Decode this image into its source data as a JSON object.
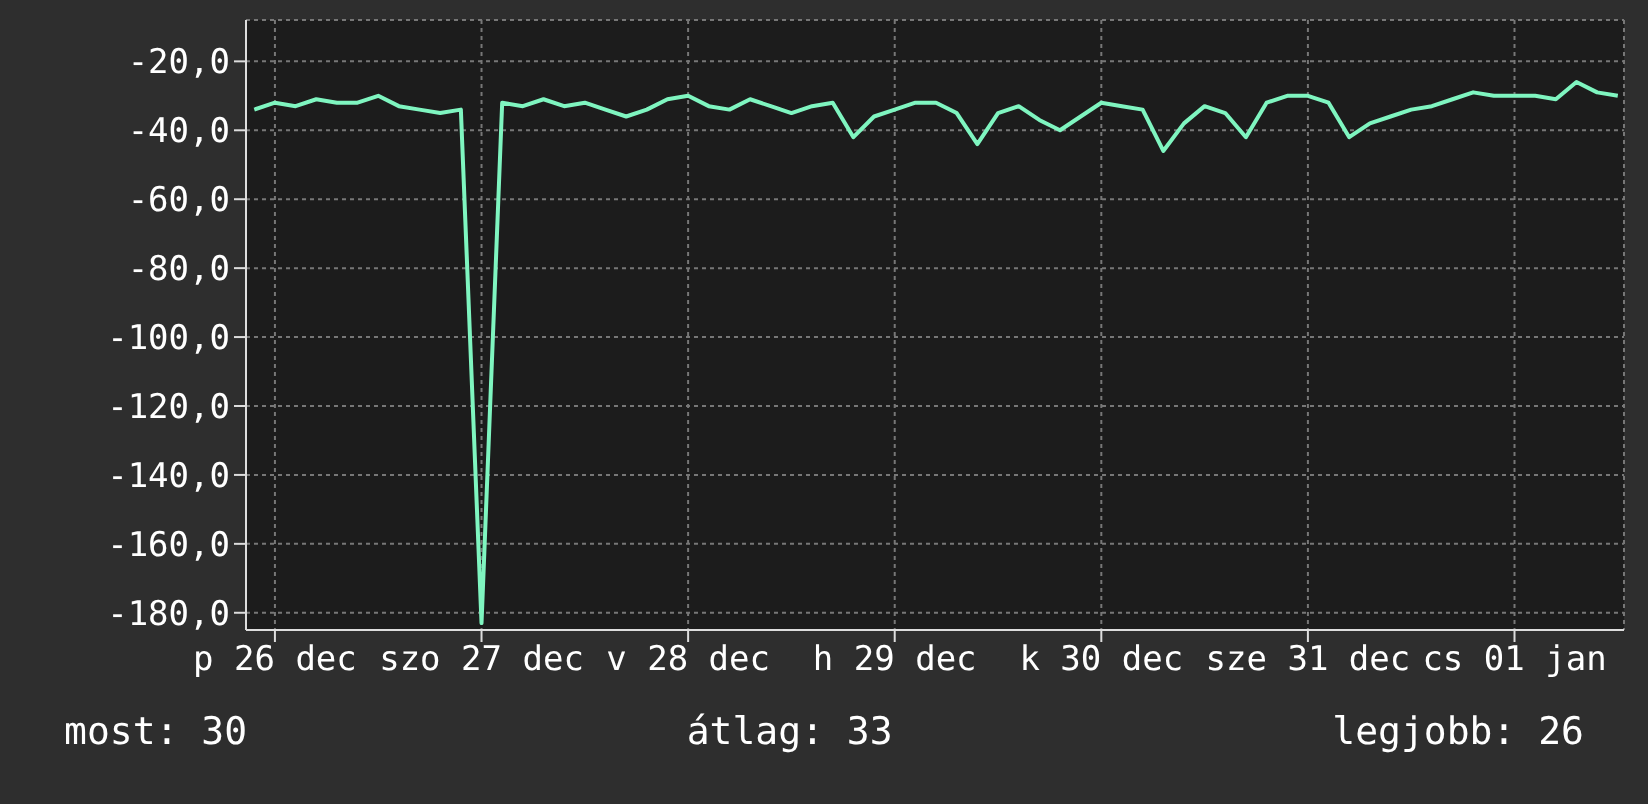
{
  "chart_data": {
    "type": "line",
    "categories": [
      null,
      "p 26 dec",
      null,
      null,
      null,
      null,
      null,
      null,
      null,
      null,
      null,
      "szo 27 dec",
      null,
      null,
      null,
      null,
      null,
      null,
      null,
      null,
      null,
      "v 28 dec",
      null,
      null,
      null,
      null,
      null,
      null,
      null,
      null,
      null,
      "h 29 dec",
      null,
      null,
      null,
      null,
      null,
      null,
      null,
      null,
      null,
      "k 30 dec",
      null,
      null,
      null,
      null,
      null,
      null,
      null,
      null,
      null,
      "sze 31 dec",
      null,
      null,
      null,
      null,
      null,
      null,
      null,
      null,
      null,
      "cs 01 jan",
      null,
      null,
      null,
      null,
      null
    ],
    "series": [
      {
        "color": "#7ff5c0",
        "values": [
          -34,
          -32,
          -33,
          -31,
          -32,
          -32,
          -30,
          -33,
          -34,
          -35,
          -34,
          -183,
          -32,
          -33,
          -31,
          -33,
          -32,
          -34,
          -36,
          -34,
          -31,
          -30,
          -33,
          -34,
          -31,
          -33,
          -35,
          -33,
          -32,
          -42,
          -36,
          -34,
          -32,
          -32,
          -35,
          -44,
          -35,
          -33,
          -37,
          -40,
          -36,
          -32,
          -33,
          -34,
          -46,
          -38,
          -33,
          -35,
          -42,
          -32,
          -30,
          -30,
          -32,
          -42,
          -38,
          -36,
          -34,
          -33,
          -31,
          -29,
          -30,
          -30,
          -30,
          -31,
          -26,
          -29,
          -30
        ]
      }
    ],
    "ylim": [
      -185,
      -8
    ],
    "yticks": [
      {
        "value": -20,
        "label": "-20,0"
      },
      {
        "value": -40,
        "label": "-40,0"
      },
      {
        "value": -60,
        "label": "-60,0"
      },
      {
        "value": -80,
        "label": "-80,0"
      },
      {
        "value": -100,
        "label": "-100,0"
      },
      {
        "value": -120,
        "label": "-120,0"
      },
      {
        "value": -140,
        "label": "-140,0"
      },
      {
        "value": -160,
        "label": "-160,0"
      },
      {
        "value": -180,
        "label": "-180,0"
      }
    ],
    "grid": true,
    "marker": "none",
    "line_style": "solid",
    "annotations": [
      "most: 30",
      "átlag: 33",
      "legjobb: 26"
    ]
  }
}
